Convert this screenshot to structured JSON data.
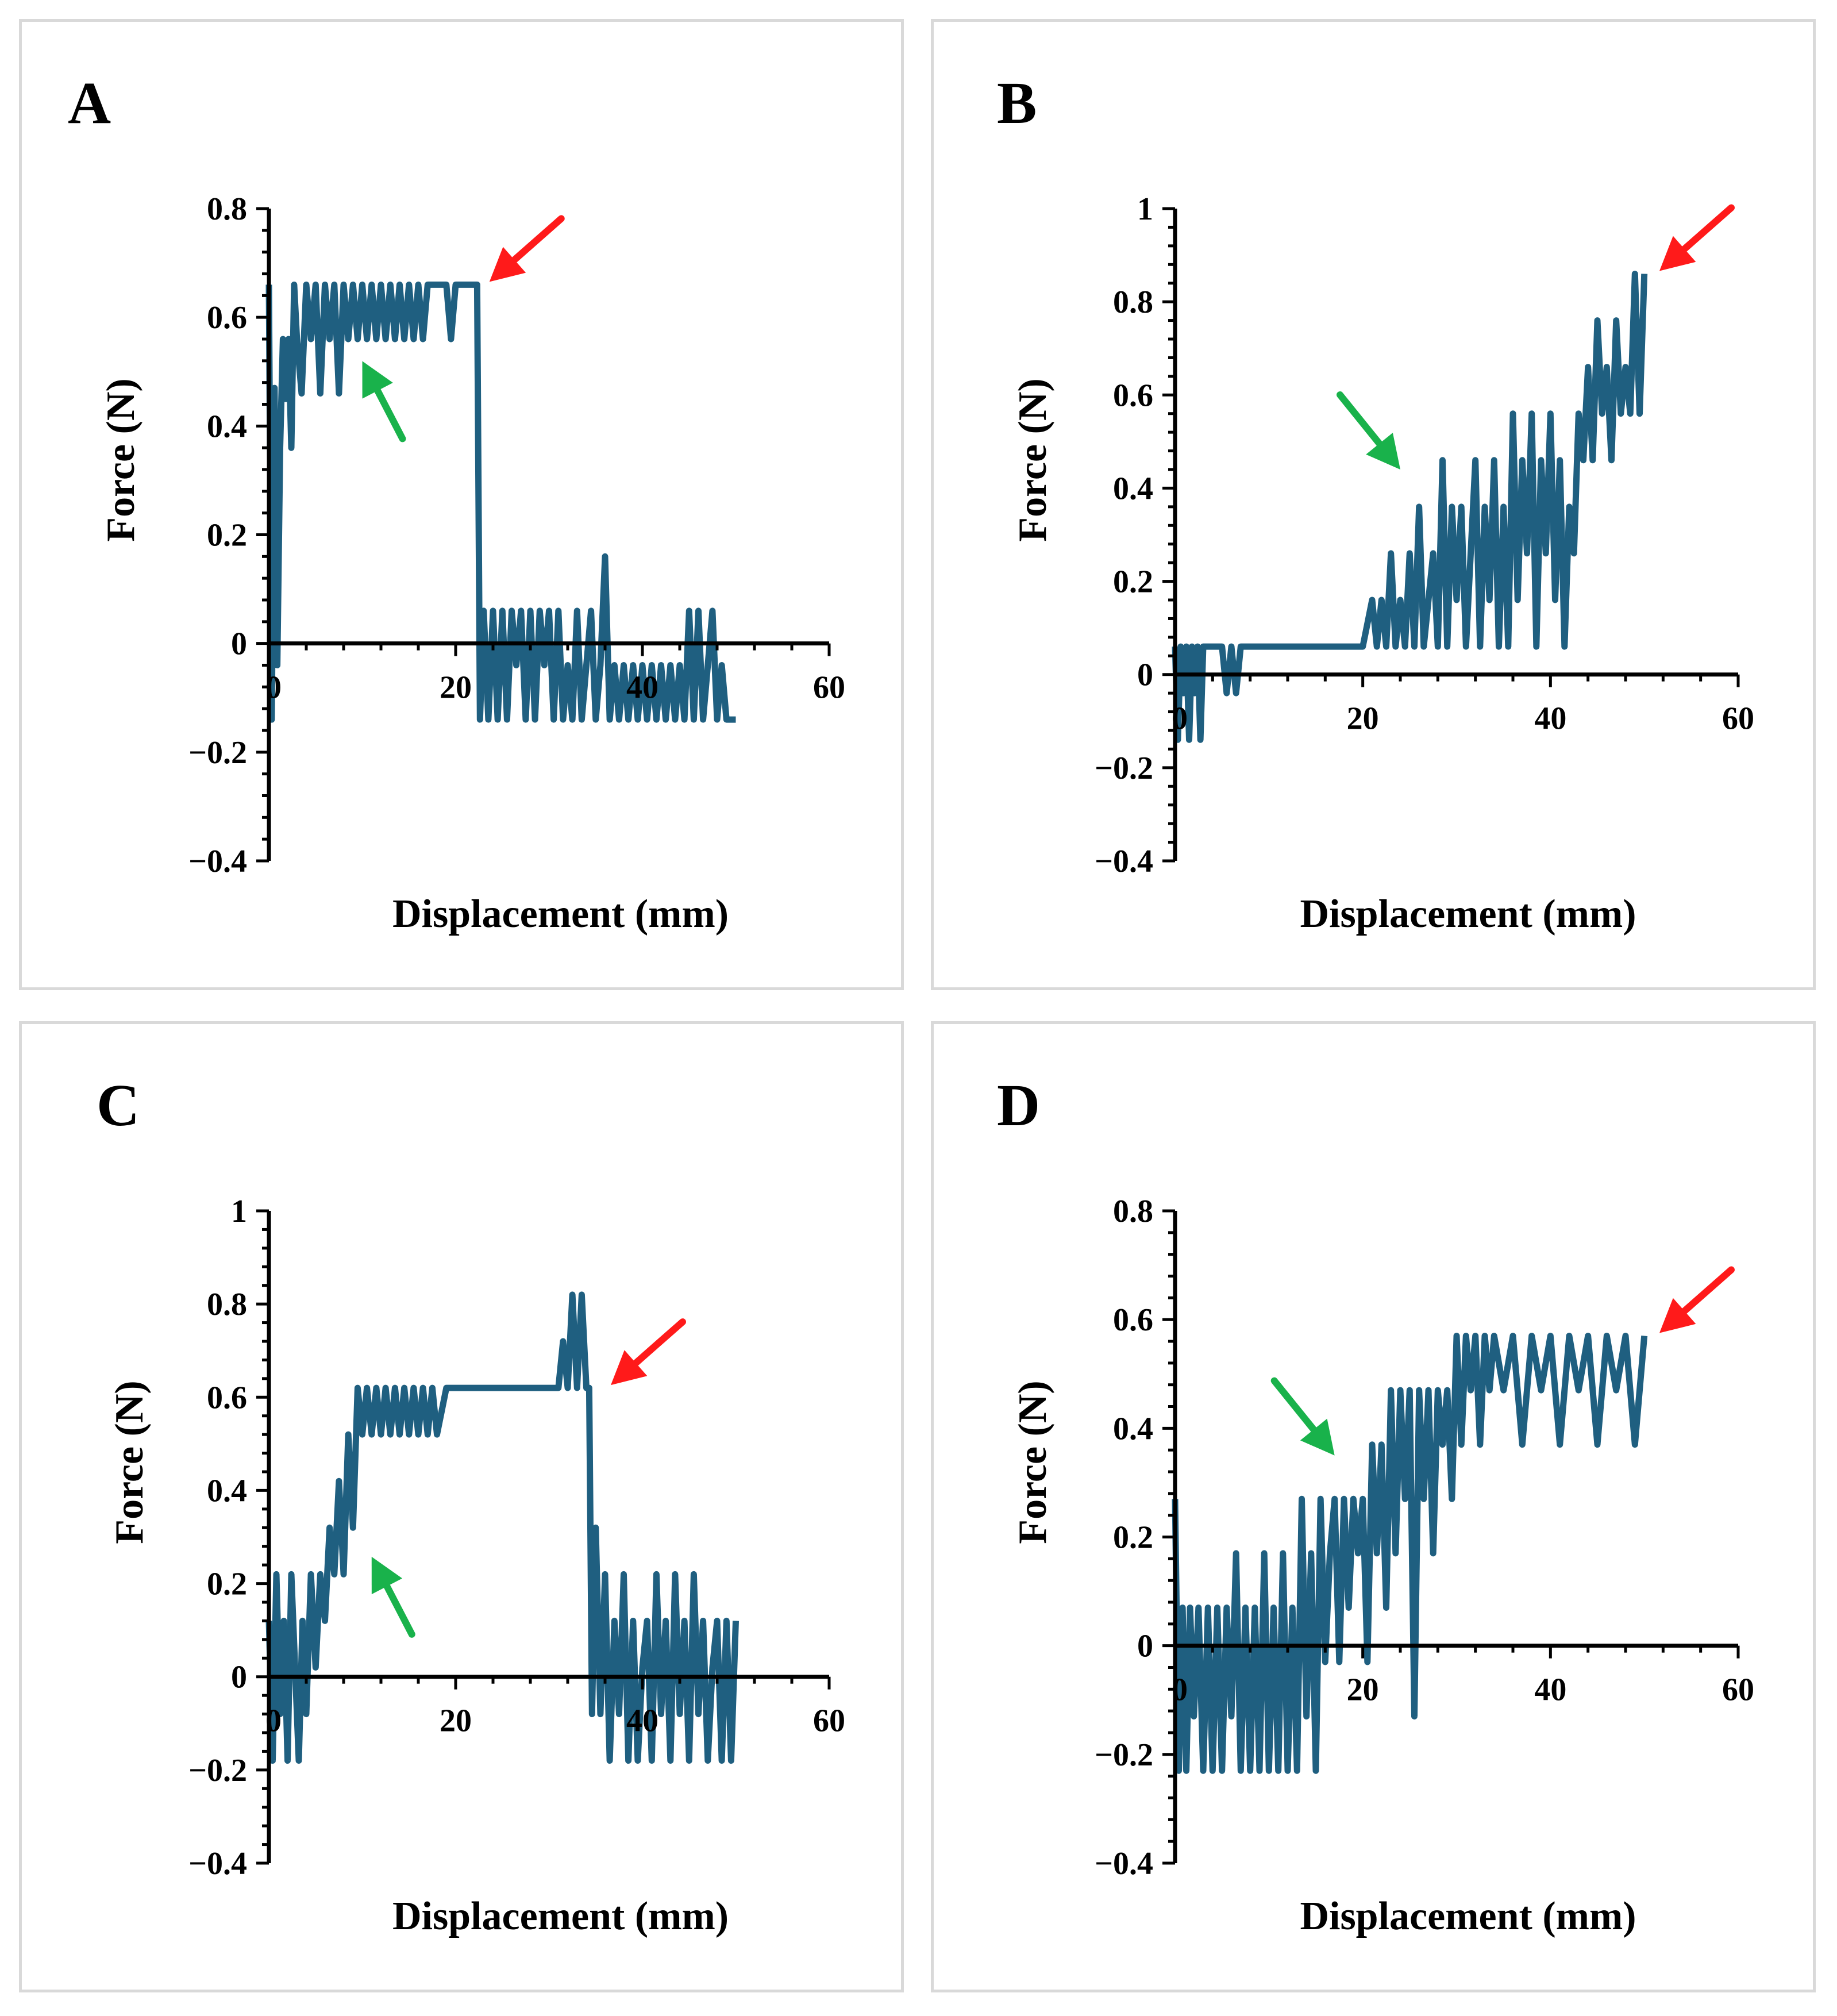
{
  "colors": {
    "series": "#1f5f80",
    "axis": "#000000",
    "red_arrow": "#ff1a1a",
    "green_arrow": "#19b24b",
    "panel_border": "#d9d9d9"
  },
  "chart_data": [
    {
      "type": "line",
      "panel": "A",
      "xlabel": "Displacement (mm)",
      "ylabel": "Force (N)",
      "xlim": [
        0,
        60
      ],
      "ylim": [
        -0.4,
        0.8
      ],
      "x_ticks": [
        0,
        20,
        40,
        60
      ],
      "y_ticks": [
        -0.4,
        -0.2,
        0,
        0.2,
        0.4,
        0.6,
        0.8
      ],
      "x_tick_labels": [
        "0",
        "20",
        "40",
        "60"
      ],
      "y_tick_labels": [
        "−0.4",
        "−0.2",
        "0",
        "0.2",
        "0.4",
        "0.6",
        "0.8"
      ],
      "series": [
        {
          "name": "Force",
          "x": [
            0,
            0.3,
            0.6,
            0.9,
            1.2,
            1.5,
            1.8,
            2.1,
            2.4,
            2.7,
            3,
            3.5,
            4,
            4.5,
            5,
            5.5,
            6,
            6.5,
            7,
            7.5,
            8,
            8.5,
            9,
            9.5,
            10,
            10.5,
            11,
            11.5,
            12,
            12.5,
            13,
            13.5,
            14,
            14.5,
            15,
            15.5,
            16,
            16.5,
            17,
            18,
            19,
            19.5,
            20,
            21,
            22,
            22.3,
            22.6,
            23,
            23.5,
            24,
            24.5,
            25,
            25.5,
            26,
            26.5,
            27,
            27.5,
            28,
            28.5,
            29,
            29.5,
            30,
            30.5,
            31,
            31.5,
            32,
            32.5,
            33,
            33.5,
            34,
            34.5,
            35,
            35.5,
            36,
            36.5,
            37,
            37.5,
            38,
            38.5,
            39,
            39.5,
            40,
            40.5,
            41,
            41.5,
            42,
            42.5,
            43,
            43.5,
            44,
            44.5,
            45,
            45.5,
            46,
            46.5,
            47,
            47.5,
            48,
            48.5,
            49,
            49.5,
            50
          ],
          "y": [
            0.66,
            -0.14,
            0.47,
            -0.04,
            0.36,
            0.56,
            0.45,
            0.56,
            0.36,
            0.66,
            0.56,
            0.46,
            0.66,
            0.56,
            0.66,
            0.46,
            0.66,
            0.56,
            0.66,
            0.46,
            0.66,
            0.56,
            0.66,
            0.56,
            0.66,
            0.56,
            0.66,
            0.56,
            0.66,
            0.56,
            0.66,
            0.56,
            0.66,
            0.56,
            0.66,
            0.56,
            0.66,
            0.56,
            0.66,
            0.66,
            0.66,
            0.56,
            0.66,
            0.66,
            0.66,
            0.66,
            -0.14,
            0.06,
            -0.14,
            0.06,
            -0.14,
            0.06,
            -0.14,
            0.06,
            -0.04,
            0.06,
            -0.14,
            0.06,
            -0.14,
            0.06,
            -0.04,
            0.06,
            -0.14,
            0.06,
            -0.14,
            -0.04,
            -0.14,
            0.06,
            -0.14,
            -0.04,
            0.06,
            -0.14,
            -0.04,
            0.16,
            -0.14,
            -0.04,
            -0.14,
            -0.04,
            -0.14,
            -0.04,
            -0.14,
            -0.04,
            -0.14,
            -0.04,
            -0.14,
            -0.04,
            -0.14,
            -0.04,
            -0.14,
            -0.04,
            -0.14,
            0.06,
            -0.14,
            0.06,
            -0.14,
            -0.04,
            0.06,
            -0.14,
            -0.04,
            -0.14,
            -0.14,
            -0.14
          ]
        }
      ],
      "annotations": [
        {
          "type": "red-arrow",
          "x": 23,
          "y": 0.66
        },
        {
          "type": "green-arrow",
          "x": 10,
          "y": 0.53
        }
      ]
    },
    {
      "type": "line",
      "panel": "B",
      "xlabel": "Displacement (mm)",
      "ylabel": "Force (N)",
      "xlim": [
        0,
        60
      ],
      "ylim": [
        -0.4,
        1
      ],
      "x_ticks": [
        0,
        20,
        40,
        60
      ],
      "y_ticks": [
        -0.4,
        -0.2,
        0,
        0.2,
        0.4,
        0.6,
        0.8,
        1
      ],
      "x_tick_labels": [
        "0",
        "20",
        "40",
        "60"
      ],
      "y_tick_labels": [
        "−0.4",
        "−0.2",
        "0",
        "0.2",
        "0.4",
        "0.6",
        "0.8",
        "1"
      ],
      "series": [
        {
          "name": "Force",
          "x": [
            0,
            0.3,
            0.6,
            0.9,
            1.2,
            1.5,
            1.8,
            2.1,
            2.4,
            2.7,
            3,
            4,
            5,
            5.5,
            6,
            6.5,
            7,
            8,
            10,
            12,
            14,
            16,
            18,
            20,
            21,
            21.5,
            22,
            22.5,
            23,
            23.5,
            24,
            24.5,
            25,
            25.5,
            26,
            26.5,
            27,
            27.5,
            28,
            28.5,
            29,
            29.5,
            30,
            30.5,
            31,
            31.5,
            32,
            32.5,
            33,
            33.5,
            34,
            34.5,
            35,
            35.5,
            36,
            36.5,
            37,
            37.5,
            38,
            38.5,
            39,
            39.5,
            40,
            40.5,
            41,
            41.5,
            42,
            42.5,
            43,
            43.5,
            44,
            44.5,
            45,
            45.5,
            46,
            46.5,
            47,
            47.5,
            48,
            48.5,
            49,
            49.5,
            50
          ],
          "y": [
            0.06,
            -0.14,
            0.06,
            -0.04,
            0.06,
            -0.14,
            0.06,
            -0.04,
            0.06,
            -0.14,
            0.06,
            0.06,
            0.06,
            -0.04,
            0.06,
            -0.04,
            0.06,
            0.06,
            0.06,
            0.06,
            0.06,
            0.06,
            0.06,
            0.06,
            0.16,
            0.06,
            0.16,
            0.06,
            0.26,
            0.06,
            0.16,
            0.06,
            0.26,
            0.06,
            0.36,
            0.06,
            0.16,
            0.26,
            0.06,
            0.46,
            0.06,
            0.36,
            0.16,
            0.36,
            0.06,
            0.26,
            0.46,
            0.06,
            0.36,
            0.16,
            0.46,
            0.06,
            0.36,
            0.06,
            0.56,
            0.16,
            0.46,
            0.26,
            0.56,
            0.06,
            0.46,
            0.26,
            0.56,
            0.16,
            0.46,
            0.06,
            0.36,
            0.26,
            0.56,
            0.46,
            0.66,
            0.46,
            0.76,
            0.56,
            0.66,
            0.46,
            0.76,
            0.56,
            0.66,
            0.56,
            0.86,
            0.56,
            0.86
          ]
        }
      ],
      "annotations": [
        {
          "type": "red-arrow",
          "x": 51,
          "y": 0.86
        },
        {
          "type": "green-arrow",
          "x": 24,
          "y": 0.44
        }
      ]
    },
    {
      "type": "line",
      "panel": "C",
      "xlabel": "Displacement (mm)",
      "ylabel": "Force (N)",
      "xlim": [
        0,
        60
      ],
      "ylim": [
        -0.4,
        1
      ],
      "x_ticks": [
        0,
        20,
        40,
        60
      ],
      "y_ticks": [
        -0.4,
        -0.2,
        0,
        0.2,
        0.4,
        0.6,
        0.8,
        1
      ],
      "x_tick_labels": [
        "0",
        "20",
        "40",
        "60"
      ],
      "y_tick_labels": [
        "−0.4",
        "−0.2",
        "0",
        "0.2",
        "0.4",
        "0.6",
        "0.8",
        "1"
      ],
      "series": [
        {
          "name": "Force",
          "x": [
            0,
            0.4,
            0.8,
            1.2,
            1.6,
            2,
            2.4,
            2.8,
            3.2,
            3.6,
            4,
            4.5,
            5,
            5.5,
            6,
            6.5,
            7,
            7.5,
            8,
            8.5,
            9,
            9.5,
            10,
            10.5,
            11,
            11.5,
            12,
            12.5,
            13,
            13.5,
            14,
            14.5,
            15,
            15.5,
            16,
            16.5,
            17,
            17.5,
            18,
            19,
            22,
            26,
            30,
            31,
            31.5,
            32,
            32.5,
            33,
            33.5,
            34,
            34.3,
            34.6,
            35,
            35.5,
            36,
            36.5,
            37,
            37.5,
            38,
            38.5,
            39,
            39.5,
            40,
            40.5,
            41,
            41.5,
            42,
            42.5,
            43,
            43.5,
            44,
            44.5,
            45,
            45.5,
            46,
            46.5,
            47,
            47.5,
            48,
            48.5,
            49,
            49.5,
            50
          ],
          "y": [
            0.12,
            -0.18,
            0.22,
            -0.08,
            0.12,
            -0.18,
            0.22,
            0.02,
            -0.18,
            0.12,
            -0.08,
            0.22,
            0.02,
            0.22,
            0.12,
            0.32,
            0.22,
            0.42,
            0.22,
            0.52,
            0.32,
            0.62,
            0.52,
            0.62,
            0.52,
            0.62,
            0.52,
            0.62,
            0.52,
            0.62,
            0.52,
            0.62,
            0.52,
            0.62,
            0.52,
            0.62,
            0.52,
            0.62,
            0.52,
            0.62,
            0.62,
            0.62,
            0.62,
            0.62,
            0.72,
            0.62,
            0.82,
            0.62,
            0.82,
            0.62,
            0.62,
            -0.08,
            0.32,
            -0.08,
            0.22,
            -0.18,
            0.12,
            -0.08,
            0.22,
            -0.18,
            0.12,
            -0.18,
            0.02,
            0.12,
            -0.18,
            0.22,
            -0.08,
            0.12,
            -0.18,
            0.22,
            -0.08,
            0.12,
            -0.18,
            0.22,
            -0.08,
            0.12,
            -0.18,
            0.02,
            0.12,
            -0.18,
            0.12,
            -0.18,
            0.12
          ]
        }
      ],
      "annotations": [
        {
          "type": "red-arrow",
          "x": 36,
          "y": 0.62
        },
        {
          "type": "green-arrow",
          "x": 11,
          "y": 0.27
        }
      ]
    },
    {
      "type": "line",
      "panel": "D",
      "xlabel": "Displacement (mm)",
      "ylabel": "Force (N)",
      "xlim": [
        0,
        60
      ],
      "ylim": [
        -0.4,
        0.8
      ],
      "x_ticks": [
        0,
        20,
        40,
        60
      ],
      "y_ticks": [
        -0.4,
        -0.2,
        0,
        0.2,
        0.4,
        0.6,
        0.8
      ],
      "x_tick_labels": [
        "0",
        "20",
        "40",
        "60"
      ],
      "y_tick_labels": [
        "−0.4",
        "−0.2",
        "0",
        "0.2",
        "0.4",
        "0.6",
        "0.8"
      ],
      "series": [
        {
          "name": "Force",
          "x": [
            0,
            0.4,
            0.8,
            1.2,
            1.6,
            2,
            2.5,
            3,
            3.5,
            4,
            4.5,
            5,
            5.5,
            6,
            6.5,
            7,
            7.5,
            8,
            8.5,
            9,
            9.5,
            10,
            10.5,
            11,
            11.5,
            12,
            12.5,
            13,
            13.5,
            14,
            14.5,
            15,
            15.5,
            16,
            16.5,
            17,
            17.5,
            18,
            18.5,
            19,
            19.5,
            20,
            20.5,
            21,
            21.5,
            22,
            22.5,
            23,
            23.5,
            24,
            24.5,
            25,
            25.5,
            26,
            26.5,
            27,
            27.5,
            28,
            28.5,
            29,
            29.5,
            30,
            30.5,
            31,
            31.5,
            32,
            32.5,
            33,
            33.5,
            34,
            35,
            36,
            37,
            38,
            39,
            40,
            41,
            42,
            43,
            44,
            45,
            46,
            47,
            48,
            49,
            50
          ],
          "y": [
            0.27,
            -0.23,
            0.07,
            -0.23,
            0.07,
            -0.13,
            0.07,
            -0.23,
            0.07,
            -0.23,
            0.07,
            -0.23,
            0.07,
            -0.13,
            0.17,
            -0.23,
            0.07,
            -0.23,
            0.07,
            -0.23,
            0.17,
            -0.23,
            0.07,
            -0.23,
            0.17,
            -0.23,
            0.07,
            -0.23,
            0.27,
            -0.13,
            0.17,
            -0.23,
            0.27,
            -0.03,
            0.17,
            0.27,
            -0.03,
            0.27,
            0.07,
            0.27,
            0.17,
            0.27,
            -0.03,
            0.37,
            0.17,
            0.37,
            0.07,
            0.47,
            0.17,
            0.47,
            0.27,
            0.47,
            -0.13,
            0.47,
            0.27,
            0.47,
            0.17,
            0.47,
            0.37,
            0.47,
            0.27,
            0.57,
            0.37,
            0.57,
            0.47,
            0.57,
            0.37,
            0.57,
            0.47,
            0.57,
            0.47,
            0.57,
            0.37,
            0.57,
            0.47,
            0.57,
            0.37,
            0.57,
            0.47,
            0.57,
            0.37,
            0.57,
            0.47,
            0.57,
            0.37,
            0.57
          ]
        }
      ],
      "annotations": [
        {
          "type": "red-arrow",
          "x": 51,
          "y": 0.57
        },
        {
          "type": "green-arrow",
          "x": 17,
          "y": 0.35
        }
      ]
    }
  ]
}
